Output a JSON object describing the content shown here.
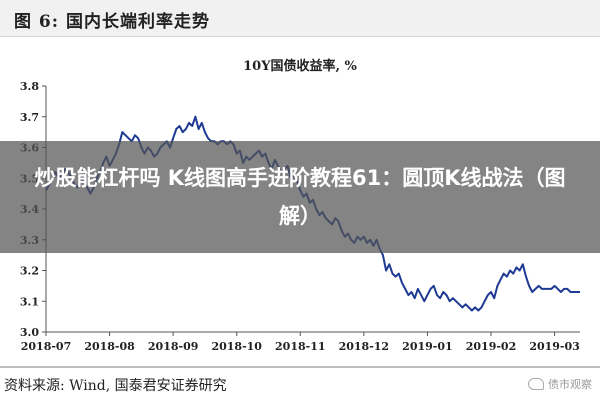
{
  "figure": {
    "title": "图 6:  国内长端利率走势",
    "source": "资料来源:  Wind,  国泰君安证券研究",
    "watermark": "债市观察"
  },
  "overlay": {
    "text": "炒股能杠杆吗 K线图高手进阶教程61：圆顶K线战法（图解）"
  },
  "chart_data": {
    "type": "line",
    "title": "10Y国债收益率,  %",
    "xlabel": "",
    "ylabel": "",
    "x_ticks": [
      "2018-07",
      "2018-08",
      "2018-09",
      "2018-10",
      "2018-11",
      "2018-12",
      "2019-01",
      "2019-02",
      "2019-03"
    ],
    "y_ticks": [
      "3.0",
      "3.1",
      "3.2",
      "3.3",
      "3.4",
      "3.5",
      "3.6",
      "3.7",
      "3.8"
    ],
    "ylim": [
      3.0,
      3.8
    ],
    "grid": false,
    "legend": "none",
    "line_color": "#1f3a93",
    "series": [
      {
        "x": [
          0.0,
          0.05,
          0.1,
          0.15,
          0.2,
          0.25,
          0.3,
          0.35,
          0.4,
          0.45,
          0.5,
          0.55,
          0.6,
          0.65,
          0.7,
          0.75,
          0.8,
          0.85,
          0.9,
          0.95,
          1.0,
          1.05,
          1.1,
          1.15,
          1.2,
          1.25,
          1.3,
          1.35,
          1.4,
          1.45,
          1.5,
          1.55,
          1.6,
          1.65,
          1.7,
          1.75,
          1.8,
          1.85,
          1.9,
          1.95,
          2.0,
          2.05,
          2.1,
          2.15,
          2.2,
          2.25,
          2.3,
          2.35,
          2.4,
          2.45,
          2.5,
          2.55,
          2.6,
          2.65,
          2.7,
          2.75,
          2.8,
          2.85,
          2.9,
          2.95,
          3.0,
          3.05,
          3.1,
          3.15,
          3.2,
          3.25,
          3.3,
          3.35,
          3.4,
          3.45,
          3.5,
          3.55,
          3.6,
          3.65,
          3.7,
          3.75,
          3.8,
          3.85,
          3.9,
          3.95,
          4.0,
          4.05,
          4.1,
          4.15,
          4.2,
          4.25,
          4.3,
          4.35,
          4.4,
          4.45,
          4.5,
          4.55,
          4.6,
          4.65,
          4.7,
          4.75,
          4.8,
          4.85,
          4.9,
          4.95,
          5.0,
          5.05,
          5.1,
          5.15,
          5.2,
          5.25,
          5.3,
          5.35,
          5.4,
          5.45,
          5.5,
          5.55,
          5.6,
          5.65,
          5.7,
          5.75,
          5.8,
          5.85,
          5.9,
          5.95,
          6.0,
          6.05,
          6.1,
          6.15,
          6.2,
          6.25,
          6.3,
          6.35,
          6.4,
          6.45,
          6.5,
          6.55,
          6.6,
          6.65,
          6.7,
          6.75,
          6.8,
          6.85,
          6.9,
          6.95,
          7.0,
          7.05,
          7.1,
          7.15,
          7.2,
          7.25,
          7.3,
          7.35,
          7.4,
          7.45,
          7.5,
          7.55,
          7.6,
          7.65,
          7.7,
          7.75,
          7.8,
          7.85,
          7.9,
          7.95,
          8.0,
          8.05,
          8.1,
          8.15,
          8.2,
          8.25,
          8.3,
          8.35,
          8.4
        ],
        "values": [
          3.46,
          3.48,
          3.5,
          3.52,
          3.5,
          3.51,
          3.53,
          3.52,
          3.5,
          3.48,
          3.47,
          3.5,
          3.49,
          3.47,
          3.45,
          3.47,
          3.5,
          3.52,
          3.55,
          3.57,
          3.54,
          3.56,
          3.58,
          3.61,
          3.65,
          3.64,
          3.63,
          3.62,
          3.64,
          3.63,
          3.6,
          3.58,
          3.6,
          3.59,
          3.57,
          3.58,
          3.6,
          3.61,
          3.62,
          3.6,
          3.63,
          3.66,
          3.67,
          3.65,
          3.66,
          3.68,
          3.67,
          3.7,
          3.66,
          3.68,
          3.65,
          3.63,
          3.62,
          3.62,
          3.61,
          3.62,
          3.62,
          3.61,
          3.62,
          3.61,
          3.58,
          3.59,
          3.55,
          3.57,
          3.56,
          3.57,
          3.58,
          3.59,
          3.57,
          3.58,
          3.55,
          3.53,
          3.56,
          3.54,
          3.52,
          3.53,
          3.54,
          3.5,
          3.51,
          3.49,
          3.46,
          3.44,
          3.45,
          3.42,
          3.43,
          3.4,
          3.38,
          3.39,
          3.37,
          3.36,
          3.35,
          3.37,
          3.36,
          3.33,
          3.31,
          3.32,
          3.3,
          3.29,
          3.31,
          3.3,
          3.31,
          3.29,
          3.3,
          3.28,
          3.3,
          3.27,
          3.25,
          3.2,
          3.22,
          3.19,
          3.18,
          3.19,
          3.16,
          3.14,
          3.12,
          3.13,
          3.11,
          3.14,
          3.12,
          3.1,
          3.12,
          3.14,
          3.15,
          3.12,
          3.11,
          3.13,
          3.12,
          3.1,
          3.11,
          3.1,
          3.09,
          3.08,
          3.09,
          3.08,
          3.07,
          3.08,
          3.07,
          3.08,
          3.1,
          3.12,
          3.13,
          3.11,
          3.15,
          3.17,
          3.19,
          3.18,
          3.2,
          3.19,
          3.21,
          3.2,
          3.22,
          3.18,
          3.15,
          3.13,
          3.14,
          3.15,
          3.14,
          3.14,
          3.14,
          3.14,
          3.15,
          3.14,
          3.13,
          3.14,
          3.14,
          3.13,
          3.13,
          3.13,
          3.13
        ]
      }
    ]
  }
}
